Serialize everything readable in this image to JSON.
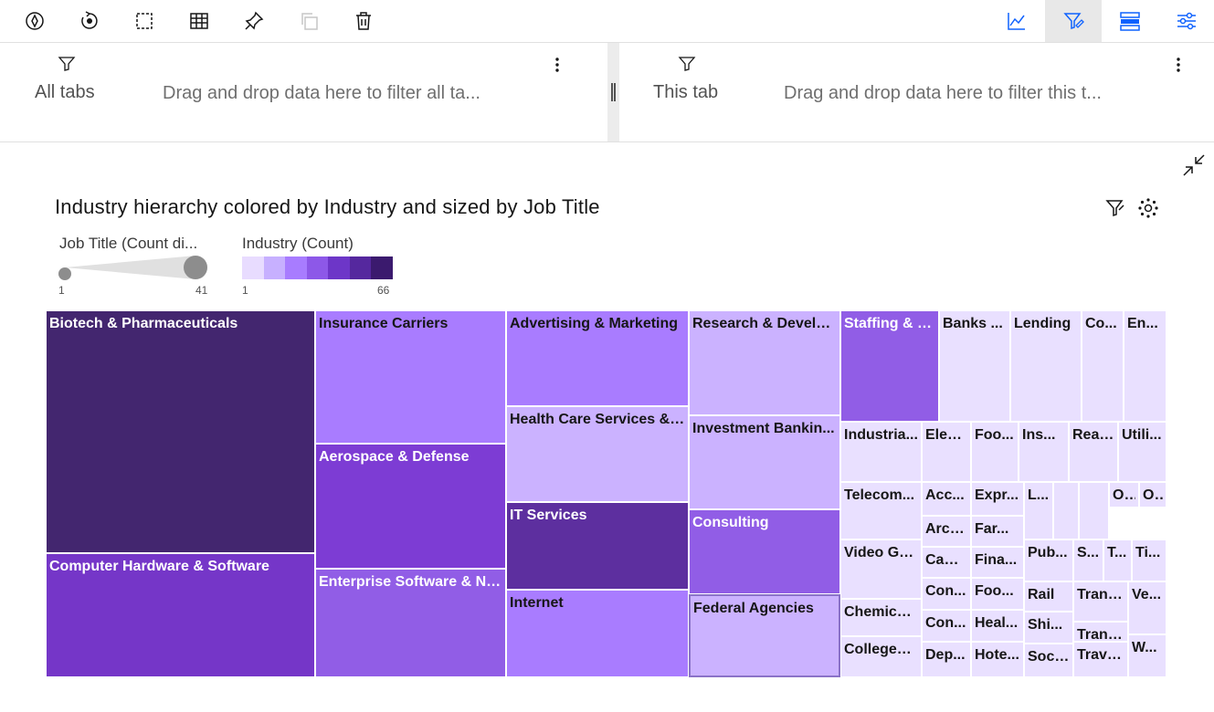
{
  "toolbar": {
    "left_buttons": [
      "explore-icon",
      "reset-icon",
      "select-icon",
      "table-icon",
      "pin-icon",
      "copy-icon",
      "delete-icon"
    ],
    "right_buttons": [
      "chart-icon",
      "filter-edit-icon",
      "layout-icon",
      "settings-icon"
    ],
    "active_button": "filter-edit-icon"
  },
  "filters": {
    "all_tabs_label": "All tabs",
    "all_tabs_drop": "Drag and drop data here to filter all ta...",
    "this_tab_label": "This tab",
    "this_tab_drop": "Drag and drop data here to filter this t..."
  },
  "chart_data": {
    "type": "treemap",
    "title": "Industry hierarchy colored by Industry and sized by Job Title",
    "legend_size": {
      "title": "Job Title (Count di...",
      "min": "1",
      "max": "41"
    },
    "legend_color": {
      "title": "Industry (Count)",
      "min": "1",
      "max": "66",
      "colors": [
        "#e8dcff",
        "#c7b0ff",
        "#a87cff",
        "#8d58e8",
        "#6d36c8",
        "#55289e",
        "#3b1a6e"
      ]
    },
    "cells": [
      {
        "label": "Biotech & Pharmaceuticals",
        "color": "#43266f",
        "text": "#ffffff"
      },
      {
        "label": "Computer Hardware & Software",
        "color": "#7536c8",
        "text": "#ffffff"
      },
      {
        "label": "Insurance Carriers",
        "color": "#a97cff",
        "text": "#161616"
      },
      {
        "label": "Aerospace & Defense",
        "color": "#7d3cd4",
        "text": "#ffffff"
      },
      {
        "label": "Enterprise Software & Ne...",
        "color": "#915de6",
        "text": "#ffffff"
      },
      {
        "label": "Advertising & Marketing",
        "color": "#a97cff",
        "text": "#161616"
      },
      {
        "label": "Health Care Services & ...",
        "color": "#cbb2ff",
        "text": "#161616"
      },
      {
        "label": "IT Services",
        "color": "#5d2f9f",
        "text": "#ffffff"
      },
      {
        "label": "Internet",
        "color": "#a97cff",
        "text": "#161616"
      },
      {
        "label": "Research & Develo...",
        "color": "#cbb2ff",
        "text": "#161616"
      },
      {
        "label": "Investment Bankin...",
        "color": "#cbb2ff",
        "text": "#161616"
      },
      {
        "label": "Consulting",
        "color": "#915de6",
        "text": "#ffffff"
      },
      {
        "label": "Federal Agencies",
        "color": "#cbb2ff",
        "text": "#161616"
      },
      {
        "label": "Staffing & O...",
        "color": "#915de6",
        "text": "#ffffff"
      },
      {
        "label": "Banks ...",
        "color": "#e9e0ff",
        "text": "#161616"
      },
      {
        "label": "Lending",
        "color": "#e9e0ff",
        "text": "#161616"
      },
      {
        "label": "Co...",
        "color": "#e9e0ff",
        "text": "#161616"
      },
      {
        "label": "En...",
        "color": "#e9e0ff",
        "text": "#161616"
      },
      {
        "label": "Industria...",
        "color": "#e9e0ff",
        "text": "#161616"
      },
      {
        "label": "Elec...",
        "color": "#e9e0ff",
        "text": "#161616"
      },
      {
        "label": "Foo...",
        "color": "#e9e0ff",
        "text": "#161616"
      },
      {
        "label": "Ins...",
        "color": "#e9e0ff",
        "text": "#161616"
      },
      {
        "label": "Real...",
        "color": "#e9e0ff",
        "text": "#161616"
      },
      {
        "label": "Utili...",
        "color": "#e9e0ff",
        "text": "#161616"
      },
      {
        "label": "Telecom...",
        "color": "#e9e0ff",
        "text": "#161616"
      },
      {
        "label": "Acc...",
        "color": "#e9e0ff",
        "text": "#161616"
      },
      {
        "label": "Expr...",
        "color": "#e9e0ff",
        "text": "#161616"
      },
      {
        "label": "L...",
        "color": "#e9e0ff",
        "text": "#161616"
      },
      {
        "label": "",
        "color": "#e9e0ff",
        "text": "#161616"
      },
      {
        "label": "",
        "color": "#e9e0ff",
        "text": "#161616"
      },
      {
        "label": "O...",
        "color": "#e9e0ff",
        "text": "#161616"
      },
      {
        "label": "O...",
        "color": "#e9e0ff",
        "text": "#161616"
      },
      {
        "label": "Arch...",
        "color": "#e9e0ff",
        "text": "#161616"
      },
      {
        "label": "Far...",
        "color": "#e9e0ff",
        "text": "#161616"
      },
      {
        "label": "Video Ga...",
        "color": "#e9e0ff",
        "text": "#161616"
      },
      {
        "label": "Cabl...",
        "color": "#e9e0ff",
        "text": "#161616"
      },
      {
        "label": "Fina...",
        "color": "#e9e0ff",
        "text": "#161616"
      },
      {
        "label": "Pub...",
        "color": "#e9e0ff",
        "text": "#161616"
      },
      {
        "label": "S...",
        "color": "#e9e0ff",
        "text": "#161616"
      },
      {
        "label": "T...",
        "color": "#e9e0ff",
        "text": "#161616"
      },
      {
        "label": "Ti...",
        "color": "#e9e0ff",
        "text": "#161616"
      },
      {
        "label": "Con...",
        "color": "#e9e0ff",
        "text": "#161616"
      },
      {
        "label": "Foo...",
        "color": "#e9e0ff",
        "text": "#161616"
      },
      {
        "label": "Rail",
        "color": "#e9e0ff",
        "text": "#161616"
      },
      {
        "label": "Chemical...",
        "color": "#e9e0ff",
        "text": "#161616"
      },
      {
        "label": "Trans...",
        "color": "#e9e0ff",
        "text": "#161616"
      },
      {
        "label": "Ve...",
        "color": "#e9e0ff",
        "text": "#161616"
      },
      {
        "label": "Con...",
        "color": "#e9e0ff",
        "text": "#161616"
      },
      {
        "label": "Heal...",
        "color": "#e9e0ff",
        "text": "#161616"
      },
      {
        "label": "Shi...",
        "color": "#e9e0ff",
        "text": "#161616"
      },
      {
        "label": "Trans...",
        "color": "#e9e0ff",
        "text": "#161616"
      },
      {
        "label": "W...",
        "color": "#e9e0ff",
        "text": "#161616"
      },
      {
        "label": "Colleges ...",
        "color": "#e9e0ff",
        "text": "#161616"
      },
      {
        "label": "Dep...",
        "color": "#e9e0ff",
        "text": "#161616"
      },
      {
        "label": "Hote...",
        "color": "#e9e0ff",
        "text": "#161616"
      },
      {
        "label": "Soci...",
        "color": "#e9e0ff",
        "text": "#161616"
      },
      {
        "label": "Trave...",
        "color": "#e9e0ff",
        "text": "#161616"
      }
    ]
  }
}
